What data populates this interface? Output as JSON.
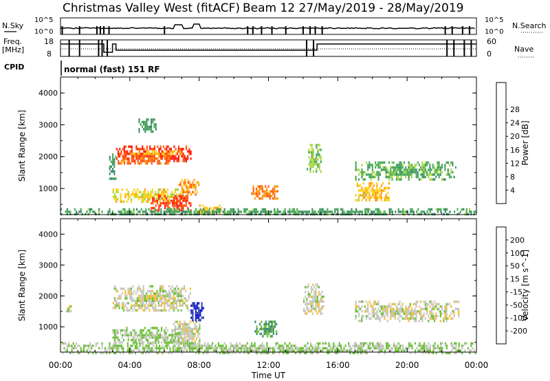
{
  "header": {
    "station": "Christmas Valley West (fitACF)",
    "beam_date": "Beam 12 27/May/2019 - 28/May/2019"
  },
  "top_panels": {
    "nsky_label": "N.Sky",
    "nsearch_label": "N.Search",
    "nave_label": "Nave",
    "freq_label_line1": "Freq.",
    "freq_label_line2": "[MHz]",
    "cpid_label": "CPID",
    "cpid_value": "normal (fast) 151 RF",
    "noise_ticks": [
      "10^5",
      "10^0"
    ],
    "freq_ticks": [
      "18",
      "8"
    ],
    "nave_ticks": [
      "60",
      "0"
    ]
  },
  "colors": {
    "power": [
      "#1a1acc",
      "#2f4fa0",
      "#3e8a6a",
      "#4aa95a",
      "#a8d84a",
      "#ffd21a",
      "#ff9c14",
      "#ff5a14",
      "#ff1e10"
    ],
    "velocity": [
      "#1a1acc",
      "#2f4fa0",
      "#3e8a6a",
      "#6ec13c",
      "#c8c8c0",
      "#f5c02e",
      "#ff9a1a",
      "#ff6a14",
      "#ff1e10"
    ]
  },
  "chart_data": [
    {
      "type": "heatmap",
      "name": "power",
      "xlabel": "",
      "ylabel": "Slant Range [km]",
      "ylim": [
        180,
        4500
      ],
      "yticks": [
        "1000",
        "2000",
        "3000",
        "4000"
      ],
      "colorbar_label": "Power [dB]",
      "colorbar_ticks": [
        "4",
        "8",
        "12",
        "16",
        "20",
        "24",
        "28"
      ],
      "clim": [
        0,
        30
      ],
      "regions": [
        {
          "t": [
            3.2,
            7.5
          ],
          "r": [
            1850,
            2350
          ],
          "v": 27
        },
        {
          "t": [
            3.3,
            6.2
          ],
          "r": [
            1750,
            2050
          ],
          "v": 24
        },
        {
          "t": [
            4.0,
            7.2
          ],
          "r": [
            2050,
            2200
          ],
          "v": 20
        },
        {
          "t": [
            3.0,
            7.2
          ],
          "r": [
            600,
            1000
          ],
          "v": 18
        },
        {
          "t": [
            5.2,
            7.5
          ],
          "r": [
            300,
            800
          ],
          "v": 26
        },
        {
          "t": [
            6.8,
            8.0
          ],
          "r": [
            800,
            1300
          ],
          "v": 22
        },
        {
          "t": [
            8.0,
            9.5
          ],
          "r": [
            200,
            500
          ],
          "v": 20
        },
        {
          "t": [
            11.0,
            12.5
          ],
          "r": [
            700,
            1100
          ],
          "v": 23
        },
        {
          "t": [
            14.2,
            15.0
          ],
          "r": [
            1500,
            2400
          ],
          "v": 14
        },
        {
          "t": [
            17.0,
            19.0
          ],
          "r": [
            600,
            1200
          ],
          "v": 19
        },
        {
          "t": [
            17.0,
            22.8
          ],
          "r": [
            1300,
            1850
          ],
          "v": 12
        },
        {
          "t": [
            2.8,
            3.2
          ],
          "r": [
            1300,
            2100
          ],
          "v": 10
        },
        {
          "t": [
            4.5,
            5.5
          ],
          "r": [
            2800,
            3200
          ],
          "v": 10
        },
        {
          "t": [
            0.0,
            24.0
          ],
          "r": [
            180,
            380
          ],
          "v": 11
        }
      ]
    },
    {
      "type": "heatmap",
      "name": "velocity",
      "xlabel": "Time UT",
      "ylabel": "Slant Range [km]",
      "ylim": [
        180,
        4500
      ],
      "yticks": [
        "1000",
        "2000",
        "3000",
        "4000"
      ],
      "xticks": [
        "00:00",
        "04:00",
        "08:00",
        "12:00",
        "16:00",
        "20:00",
        "00:00"
      ],
      "xlim": [
        0,
        24
      ],
      "colorbar_label": "Velocity [m s^-1]",
      "colorbar_ticks": [
        "200",
        "100",
        "50",
        "15",
        "-15",
        "-50",
        "-100",
        "-200"
      ],
      "clim": [
        -250,
        250
      ],
      "regions": [
        {
          "t": [
            3.0,
            7.5
          ],
          "r": [
            1500,
            2350
          ],
          "v": 0
        },
        {
          "t": [
            3.0,
            7.5
          ],
          "r": [
            500,
            1000
          ],
          "v": -30
        },
        {
          "t": [
            6.5,
            8.0
          ],
          "r": [
            300,
            1200
          ],
          "v": 0
        },
        {
          "t": [
            7.5,
            8.2
          ],
          "r": [
            1200,
            1800
          ],
          "v": -200
        },
        {
          "t": [
            11.2,
            12.5
          ],
          "r": [
            700,
            1200
          ],
          "v": -80
        },
        {
          "t": [
            14.0,
            15.2
          ],
          "r": [
            1400,
            2400
          ],
          "v": 0
        },
        {
          "t": [
            17.0,
            23.0
          ],
          "r": [
            1200,
            1850
          ],
          "v": 0
        },
        {
          "t": [
            0.0,
            24.0
          ],
          "r": [
            180,
            500
          ],
          "v": -30
        },
        {
          "t": [
            0.3,
            0.6
          ],
          "r": [
            1500,
            1700
          ],
          "v": 0
        }
      ]
    }
  ]
}
